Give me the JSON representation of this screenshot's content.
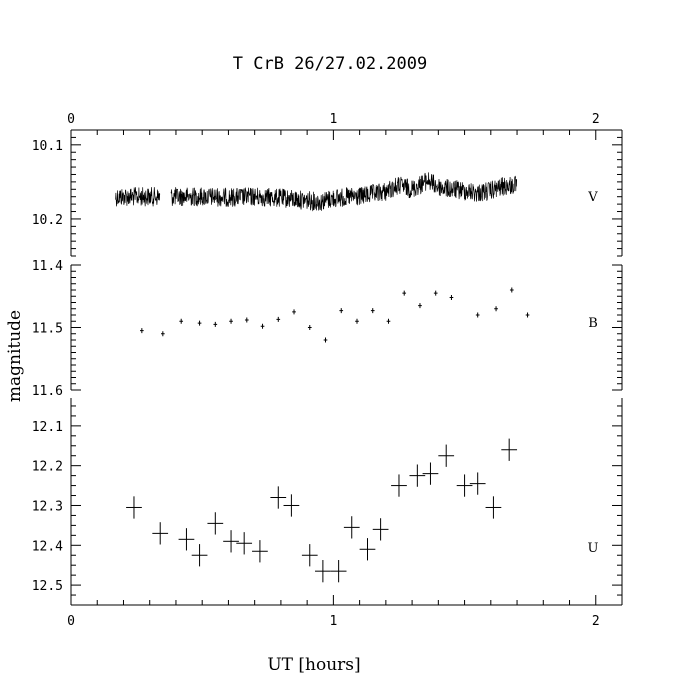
{
  "chart_data": {
    "type": "scatter",
    "title": "T CrB  26/27.02.2009",
    "xlabel": "UT [hours]",
    "ylabel": "magnitude",
    "xlim": [
      0,
      2.1
    ],
    "x_ticks": [
      "0",
      "1",
      "2"
    ],
    "grid": false,
    "panels": [
      {
        "name": "V",
        "ylim": [
          10.25,
          10.08
        ],
        "y_ticks": [
          "10.1",
          "10.2"
        ],
        "series": [
          {
            "name": "V",
            "style": "continuous-noisy-line",
            "x": [
              0.17,
              0.3,
              0.38,
              0.5,
              0.6,
              0.7,
              0.8,
              0.9,
              0.95,
              1.0,
              1.1,
              1.2,
              1.25,
              1.3,
              1.36,
              1.4,
              1.45,
              1.5,
              1.55,
              1.6,
              1.65,
              1.7
            ],
            "y": [
              10.17,
              10.17,
              10.17,
              10.17,
              10.171,
              10.17,
              10.172,
              10.175,
              10.177,
              10.172,
              10.17,
              10.163,
              10.155,
              10.16,
              10.148,
              10.157,
              10.16,
              10.162,
              10.165,
              10.162,
              10.156,
              10.155
            ],
            "gap": [
              0.34,
              0.38
            ]
          }
        ]
      },
      {
        "name": "B",
        "ylim": [
          11.6,
          11.4
        ],
        "y_ticks": [
          "11.4",
          "11.5",
          "11.6"
        ],
        "series": [
          {
            "name": "B",
            "x": [
              0.27,
              0.35,
              0.42,
              0.49,
              0.55,
              0.61,
              0.67,
              0.73,
              0.79,
              0.85,
              0.91,
              0.97,
              1.03,
              1.09,
              1.15,
              1.21,
              1.27,
              1.33,
              1.39,
              1.45,
              1.55,
              1.62,
              1.68,
              1.74
            ],
            "y": [
              11.505,
              11.51,
              11.49,
              11.493,
              11.495,
              11.49,
              11.488,
              11.498,
              11.487,
              11.475,
              11.5,
              11.52,
              11.473,
              11.49,
              11.473,
              11.49,
              11.445,
              11.465,
              11.445,
              11.452,
              11.48,
              11.47,
              11.44,
              11.48
            ],
            "xerr": 0.007,
            "yerr": 0.004
          }
        ]
      },
      {
        "name": "U",
        "ylim": [
          12.55,
          12.03
        ],
        "y_ticks": [
          "12.1",
          "12.2",
          "12.3",
          "12.4",
          "12.5"
        ],
        "series": [
          {
            "name": "U",
            "x": [
              0.24,
              0.34,
              0.44,
              0.49,
              0.55,
              0.61,
              0.66,
              0.72,
              0.79,
              0.84,
              0.91,
              0.96,
              1.02,
              1.07,
              1.13,
              1.18,
              1.25,
              1.32,
              1.37,
              1.43,
              1.5,
              1.55,
              1.61,
              1.67
            ],
            "y": [
              12.305,
              12.37,
              12.385,
              12.425,
              12.345,
              12.39,
              12.395,
              12.415,
              12.28,
              12.3,
              12.425,
              12.465,
              12.465,
              12.355,
              12.41,
              12.36,
              12.25,
              12.225,
              12.22,
              12.175,
              12.25,
              12.245,
              12.305,
              12.16
            ],
            "xerr": 0.03,
            "yerr": 0.028
          }
        ]
      }
    ]
  }
}
